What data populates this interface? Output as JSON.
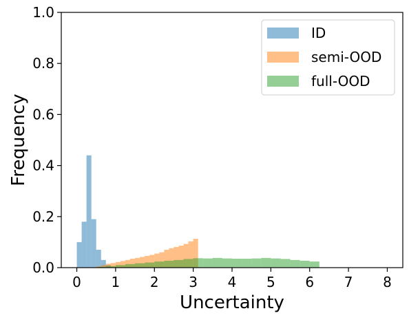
{
  "chart_data": {
    "type": "bar",
    "subtype": "overlaid-histogram",
    "xlabel": "Uncertainty",
    "ylabel": "Frequency",
    "xlim": [
      -0.4,
      8.4
    ],
    "ylim": [
      0,
      1.0
    ],
    "xticks": [
      0,
      1,
      2,
      3,
      4,
      5,
      6,
      7,
      8
    ],
    "yticks": [
      0.0,
      0.2,
      0.4,
      0.6,
      0.8,
      1.0
    ],
    "xtick_labels": [
      "0",
      "1",
      "2",
      "3",
      "4",
      "5",
      "6",
      "7",
      "8"
    ],
    "ytick_labels": [
      "0.0",
      "0.2",
      "0.4",
      "0.6",
      "0.8",
      "1.0"
    ],
    "grid": false,
    "legend_position": "top-right",
    "series": [
      {
        "name": "ID",
        "color": "#1f77b4",
        "alpha": 0.5,
        "bin_edges": [
          0.0,
          0.125,
          0.25,
          0.375,
          0.5,
          0.625,
          0.75,
          0.875
        ],
        "values": [
          0.1,
          0.18,
          0.44,
          0.19,
          0.07,
          0.03,
          0.01
        ]
      },
      {
        "name": "semi-OOD",
        "color": "#ff7f0e",
        "alpha": 0.5,
        "bin_edges": [
          0.5,
          0.625,
          0.75,
          0.875,
          1.0,
          1.125,
          1.25,
          1.375,
          1.5,
          1.625,
          1.75,
          1.875,
          2.0,
          2.125,
          2.25,
          2.375,
          2.5,
          2.625,
          2.75,
          2.875,
          3.0,
          3.125
        ],
        "values": [
          0.005,
          0.01,
          0.015,
          0.018,
          0.022,
          0.026,
          0.03,
          0.035,
          0.038,
          0.042,
          0.046,
          0.05,
          0.055,
          0.06,
          0.07,
          0.076,
          0.081,
          0.086,
          0.093,
          0.103,
          0.113
        ]
      },
      {
        "name": "full-OOD",
        "color": "#2ca02c",
        "alpha": 0.5,
        "bin_edges": [
          0.55,
          0.75,
          1.0,
          1.25,
          1.5,
          1.75,
          2.0,
          2.25,
          2.5,
          2.75,
          3.0,
          3.25,
          3.5,
          3.75,
          4.0,
          4.25,
          4.5,
          4.75,
          5.0,
          5.25,
          5.5,
          5.75,
          6.0,
          6.25
        ],
        "values": [
          0.003,
          0.006,
          0.01,
          0.014,
          0.017,
          0.02,
          0.024,
          0.027,
          0.03,
          0.034,
          0.037,
          0.036,
          0.038,
          0.036,
          0.035,
          0.035,
          0.036,
          0.038,
          0.036,
          0.034,
          0.03,
          0.027,
          0.024
        ]
      }
    ]
  }
}
